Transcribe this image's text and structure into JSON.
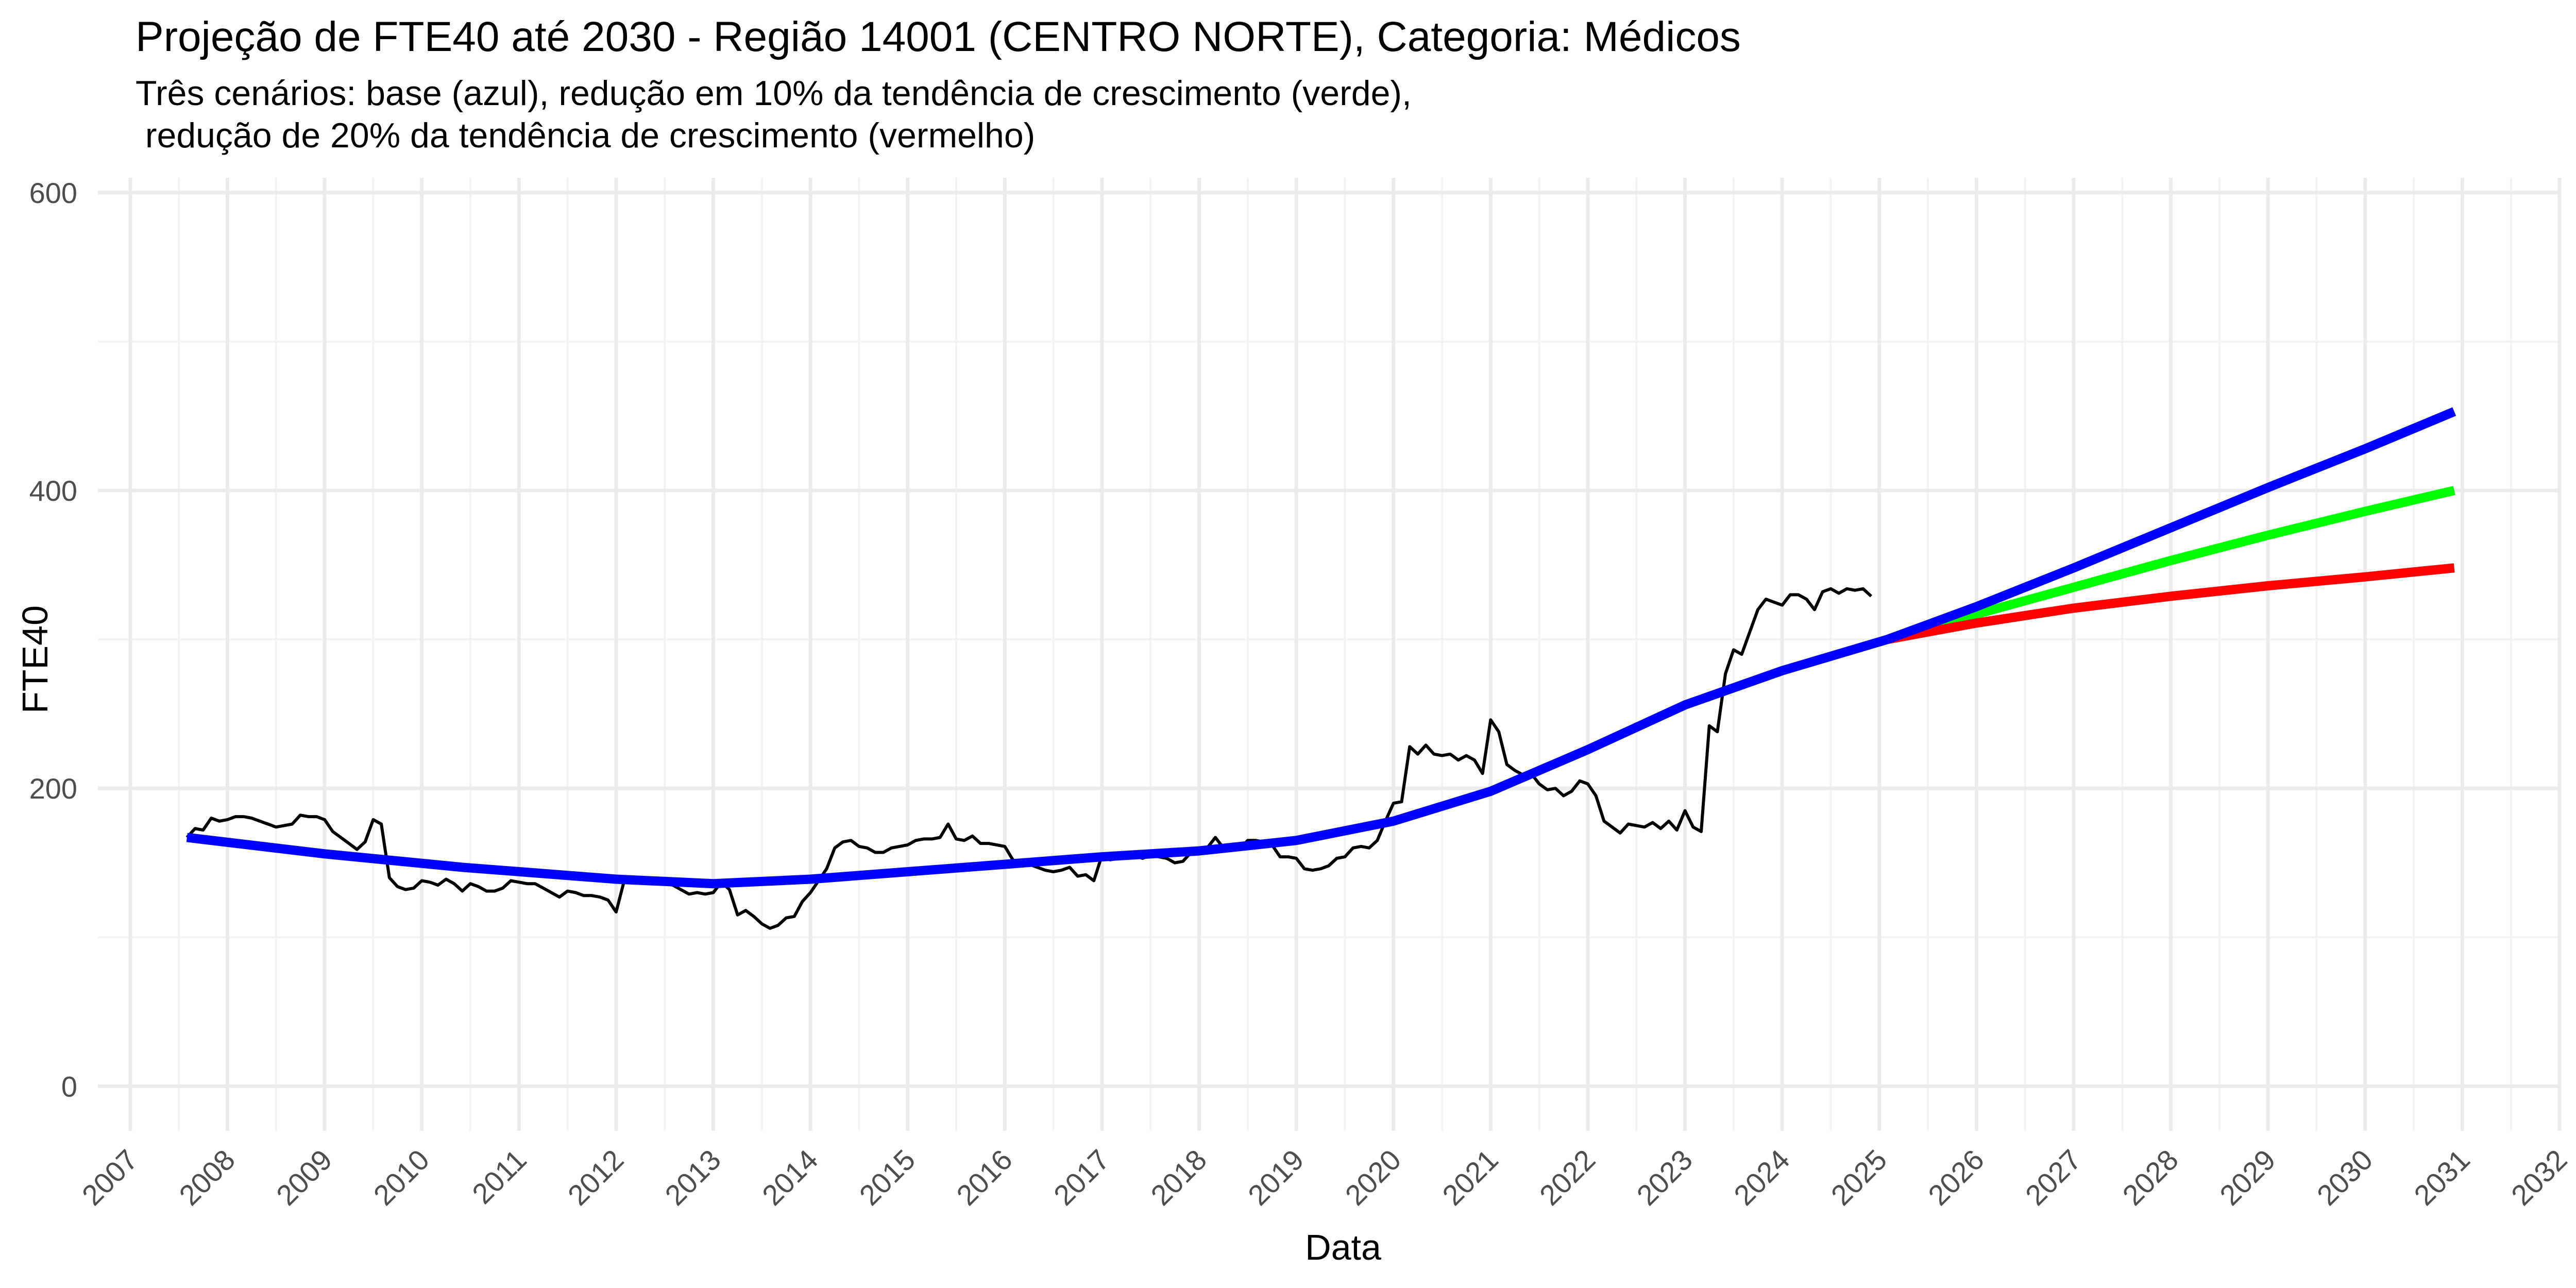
{
  "chart_data": {
    "type": "line",
    "title": "Projeção de FTE40 até 2030 - Região 14001 (CENTRO NORTE), Categoria: Médicos",
    "subtitle": "Três cenários: base (azul), redução em 10% da tendência de crescimento (verde),\n redução de 20% da tendência de crescimento (vermelho)",
    "xlabel": "Data",
    "ylabel": "FTE40",
    "xlim": [
      "2006-09-01",
      "2032-01-01"
    ],
    "ylim": [
      -30,
      610
    ],
    "y_ticks": [
      0,
      200,
      400,
      600
    ],
    "x_ticks": [
      "2007",
      "2008",
      "2009",
      "2010",
      "2011",
      "2012",
      "2013",
      "2014",
      "2015",
      "2016",
      "2017",
      "2018",
      "2019",
      "2020",
      "2021",
      "2022",
      "2023",
      "2024",
      "2025",
      "2026",
      "2027",
      "2028",
      "2029",
      "2030",
      "2031",
      "2032"
    ],
    "grid": true,
    "series": [
      {
        "style": "observed",
        "color": "#000000",
        "points": [
          [
            "2007-08",
            167
          ],
          [
            "2007-09",
            173
          ],
          [
            "2007-10",
            172
          ],
          [
            "2007-11",
            180
          ],
          [
            "2007-12",
            178
          ],
          [
            "2008-01",
            179
          ],
          [
            "2008-02",
            181
          ],
          [
            "2008-03",
            181
          ],
          [
            "2008-04",
            180
          ],
          [
            "2008-05",
            178
          ],
          [
            "2008-06",
            176
          ],
          [
            "2008-07",
            174
          ],
          [
            "2008-08",
            175
          ],
          [
            "2008-09",
            176
          ],
          [
            "2008-10",
            182
          ],
          [
            "2008-11",
            181
          ],
          [
            "2008-12",
            181
          ],
          [
            "2009-01",
            179
          ],
          [
            "2009-02",
            171
          ],
          [
            "2009-03",
            167
          ],
          [
            "2009-04",
            163
          ],
          [
            "2009-05",
            159
          ],
          [
            "2009-06",
            164
          ],
          [
            "2009-07",
            179
          ],
          [
            "2009-08",
            176
          ],
          [
            "2009-09",
            140
          ],
          [
            "2009-10",
            134
          ],
          [
            "2009-11",
            132
          ],
          [
            "2009-12",
            133
          ],
          [
            "2010-01",
            138
          ],
          [
            "2010-02",
            137
          ],
          [
            "2010-03",
            135
          ],
          [
            "2010-04",
            139
          ],
          [
            "2010-05",
            136
          ],
          [
            "2010-06",
            131
          ],
          [
            "2010-07",
            136
          ],
          [
            "2010-08",
            134
          ],
          [
            "2010-09",
            131
          ],
          [
            "2010-10",
            131
          ],
          [
            "2010-11",
            133
          ],
          [
            "2010-12",
            138
          ],
          [
            "2011-01",
            137
          ],
          [
            "2011-02",
            136
          ],
          [
            "2011-03",
            136
          ],
          [
            "2011-04",
            133
          ],
          [
            "2011-05",
            130
          ],
          [
            "2011-06",
            127
          ],
          [
            "2011-07",
            131
          ],
          [
            "2011-08",
            130
          ],
          [
            "2011-09",
            128
          ],
          [
            "2011-10",
            128
          ],
          [
            "2011-11",
            127
          ],
          [
            "2011-12",
            125
          ],
          [
            "2012-01",
            117
          ],
          [
            "2012-02",
            138
          ],
          [
            "2012-03",
            139
          ],
          [
            "2012-04",
            138
          ],
          [
            "2012-05",
            137
          ],
          [
            "2012-06",
            136
          ],
          [
            "2012-07",
            136
          ],
          [
            "2012-08",
            135
          ],
          [
            "2012-09",
            132
          ],
          [
            "2012-10",
            129
          ],
          [
            "2012-11",
            130
          ],
          [
            "2012-12",
            129
          ],
          [
            "2013-01",
            130
          ],
          [
            "2013-02",
            137
          ],
          [
            "2013-03",
            132
          ],
          [
            "2013-04",
            115
          ],
          [
            "2013-05",
            118
          ],
          [
            "2013-06",
            114
          ],
          [
            "2013-07",
            109
          ],
          [
            "2013-08",
            106
          ],
          [
            "2013-09",
            108
          ],
          [
            "2013-10",
            113
          ],
          [
            "2013-11",
            114
          ],
          [
            "2013-12",
            124
          ],
          [
            "2014-01",
            130
          ],
          [
            "2014-02",
            138
          ],
          [
            "2014-03",
            146
          ],
          [
            "2014-04",
            160
          ],
          [
            "2014-05",
            164
          ],
          [
            "2014-06",
            165
          ],
          [
            "2014-07",
            161
          ],
          [
            "2014-08",
            160
          ],
          [
            "2014-09",
            157
          ],
          [
            "2014-10",
            157
          ],
          [
            "2014-11",
            160
          ],
          [
            "2014-12",
            161
          ],
          [
            "2015-01",
            162
          ],
          [
            "2015-02",
            165
          ],
          [
            "2015-03",
            166
          ],
          [
            "2015-04",
            166
          ],
          [
            "2015-05",
            167
          ],
          [
            "2015-06",
            176
          ],
          [
            "2015-07",
            166
          ],
          [
            "2015-08",
            165
          ],
          [
            "2015-09",
            168
          ],
          [
            "2015-10",
            163
          ],
          [
            "2015-11",
            163
          ],
          [
            "2015-12",
            162
          ],
          [
            "2016-01",
            161
          ],
          [
            "2016-02",
            152
          ],
          [
            "2016-03",
            148
          ],
          [
            "2016-04",
            149
          ],
          [
            "2016-05",
            147
          ],
          [
            "2016-06",
            145
          ],
          [
            "2016-07",
            144
          ],
          [
            "2016-08",
            145
          ],
          [
            "2016-09",
            147
          ],
          [
            "2016-10",
            141
          ],
          [
            "2016-11",
            142
          ],
          [
            "2016-12",
            138
          ],
          [
            "2017-01",
            155
          ],
          [
            "2017-02",
            152
          ],
          [
            "2017-03",
            153
          ],
          [
            "2017-04",
            156
          ],
          [
            "2017-05",
            155
          ],
          [
            "2017-06",
            153
          ],
          [
            "2017-07",
            155
          ],
          [
            "2017-08",
            154
          ],
          [
            "2017-09",
            153
          ],
          [
            "2017-10",
            150
          ],
          [
            "2017-11",
            151
          ],
          [
            "2017-12",
            157
          ],
          [
            "2018-01",
            158
          ],
          [
            "2018-02",
            160
          ],
          [
            "2018-03",
            167
          ],
          [
            "2018-04",
            160
          ],
          [
            "2018-05",
            162
          ],
          [
            "2018-06",
            159
          ],
          [
            "2018-07",
            165
          ],
          [
            "2018-08",
            165
          ],
          [
            "2018-09",
            164
          ],
          [
            "2018-10",
            162
          ],
          [
            "2018-11",
            154
          ],
          [
            "2018-12",
            154
          ],
          [
            "2019-01",
            153
          ],
          [
            "2019-02",
            146
          ],
          [
            "2019-03",
            145
          ],
          [
            "2019-04",
            146
          ],
          [
            "2019-05",
            148
          ],
          [
            "2019-06",
            153
          ],
          [
            "2019-07",
            154
          ],
          [
            "2019-08",
            160
          ],
          [
            "2019-09",
            161
          ],
          [
            "2019-10",
            160
          ],
          [
            "2019-11",
            165
          ],
          [
            "2019-12",
            178
          ],
          [
            "2020-01",
            190
          ],
          [
            "2020-02",
            191
          ],
          [
            "2020-03",
            228
          ],
          [
            "2020-04",
            223
          ],
          [
            "2020-05",
            229
          ],
          [
            "2020-06",
            223
          ],
          [
            "2020-07",
            222
          ],
          [
            "2020-08",
            223
          ],
          [
            "2020-09",
            219
          ],
          [
            "2020-10",
            222
          ],
          [
            "2020-11",
            219
          ],
          [
            "2020-12",
            210
          ],
          [
            "2021-01",
            246
          ],
          [
            "2021-02",
            238
          ],
          [
            "2021-03",
            216
          ],
          [
            "2021-04",
            212
          ],
          [
            "2021-05",
            209
          ],
          [
            "2021-06",
            210
          ],
          [
            "2021-07",
            203
          ],
          [
            "2021-08",
            199
          ],
          [
            "2021-09",
            200
          ],
          [
            "2021-10",
            195
          ],
          [
            "2021-11",
            198
          ],
          [
            "2021-12",
            205
          ],
          [
            "2022-01",
            203
          ],
          [
            "2022-02",
            195
          ],
          [
            "2022-03",
            178
          ],
          [
            "2022-04",
            174
          ],
          [
            "2022-05",
            170
          ],
          [
            "2022-06",
            176
          ],
          [
            "2022-07",
            175
          ],
          [
            "2022-08",
            174
          ],
          [
            "2022-09",
            177
          ],
          [
            "2022-10",
            173
          ],
          [
            "2022-11",
            178
          ],
          [
            "2022-12",
            172
          ],
          [
            "2023-01",
            185
          ],
          [
            "2023-02",
            174
          ],
          [
            "2023-03",
            171
          ],
          [
            "2023-04",
            242
          ],
          [
            "2023-05",
            238
          ],
          [
            "2023-06",
            277
          ],
          [
            "2023-07",
            293
          ],
          [
            "2023-08",
            290
          ],
          [
            "2023-09",
            305
          ],
          [
            "2023-10",
            320
          ],
          [
            "2023-11",
            327
          ],
          [
            "2023-12",
            325
          ],
          [
            "2024-01",
            323
          ],
          [
            "2024-02",
            330
          ],
          [
            "2024-03",
            330
          ],
          [
            "2024-04",
            327
          ],
          [
            "2024-05",
            320
          ],
          [
            "2024-06",
            332
          ],
          [
            "2024-07",
            334
          ],
          [
            "2024-08",
            331
          ],
          [
            "2024-09",
            334
          ],
          [
            "2024-10",
            333
          ],
          [
            "2024-11",
            334
          ],
          [
            "2024-12",
            329
          ]
        ]
      },
      {
        "style": "trend",
        "color": "#0000ff",
        "points": [
          [
            "2007-08",
            167
          ],
          [
            "2009-01",
            156
          ],
          [
            "2010-06",
            147
          ],
          [
            "2012-01",
            139
          ],
          [
            "2013-01",
            136
          ],
          [
            "2014-01",
            139
          ],
          [
            "2015-01",
            144
          ],
          [
            "2016-01",
            149
          ],
          [
            "2017-01",
            154
          ],
          [
            "2018-01",
            158
          ],
          [
            "2019-01",
            165
          ],
          [
            "2020-01",
            178
          ],
          [
            "2021-01",
            198
          ],
          [
            "2022-01",
            226
          ],
          [
            "2023-01",
            256
          ],
          [
            "2024-01",
            279
          ],
          [
            "2025-02",
            300
          ],
          [
            "2026-01",
            322
          ],
          [
            "2027-01",
            348
          ],
          [
            "2028-01",
            375
          ],
          [
            "2029-01",
            402
          ],
          [
            "2030-01",
            428
          ],
          [
            "2030-12",
            453
          ]
        ]
      },
      {
        "style": "projection",
        "color": "#00ff00",
        "points": [
          [
            "2025-02",
            300
          ],
          [
            "2026-01",
            317
          ],
          [
            "2027-01",
            335
          ],
          [
            "2028-01",
            353
          ],
          [
            "2029-01",
            370
          ],
          [
            "2030-01",
            386
          ],
          [
            "2030-12",
            400
          ]
        ]
      },
      {
        "style": "projection",
        "color": "#ff0000",
        "points": [
          [
            "2025-02",
            300
          ],
          [
            "2026-01",
            311
          ],
          [
            "2027-01",
            321
          ],
          [
            "2028-01",
            329
          ],
          [
            "2029-01",
            336
          ],
          [
            "2030-01",
            342
          ],
          [
            "2030-12",
            348
          ]
        ]
      }
    ]
  }
}
